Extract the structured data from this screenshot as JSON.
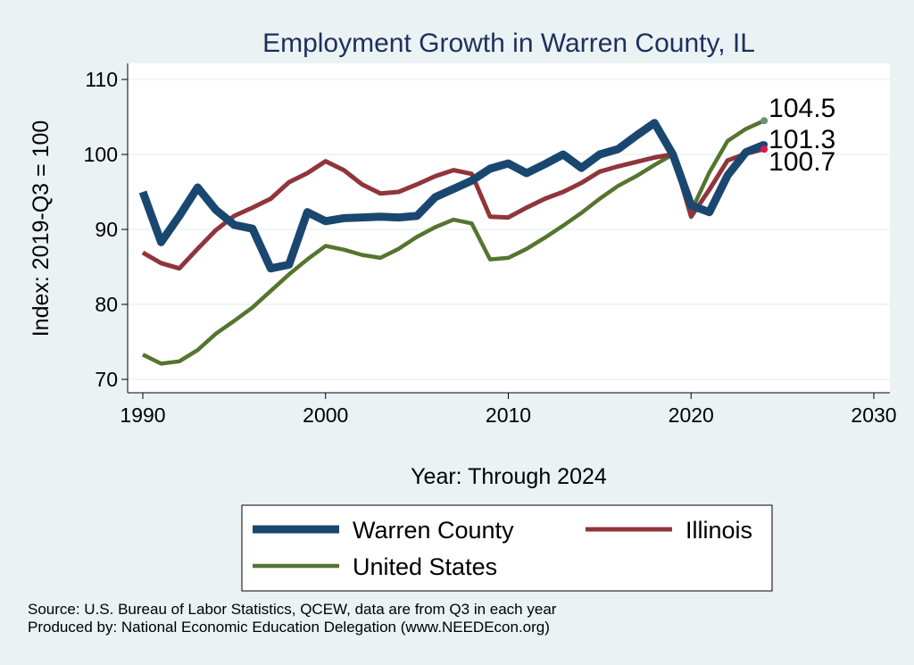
{
  "chart_data": {
    "type": "line",
    "title": "Employment Growth in Warren County, IL",
    "xlabel": "Year: Through 2024",
    "ylabel": "Index: 2019-Q3 = 100",
    "xlim": [
      1990,
      2030
    ],
    "ylim": [
      70,
      110
    ],
    "x_ticks": [
      1990,
      2000,
      2010,
      2020,
      2030
    ],
    "y_ticks": [
      70,
      80,
      90,
      100,
      110
    ],
    "grid": "horizontal",
    "legend_position": "bottom",
    "x": [
      1990,
      1991,
      1992,
      1993,
      1994,
      1995,
      1996,
      1997,
      1998,
      1999,
      2000,
      2001,
      2002,
      2003,
      2004,
      2005,
      2006,
      2007,
      2008,
      2009,
      2010,
      2011,
      2012,
      2013,
      2014,
      2015,
      2016,
      2017,
      2018,
      2019,
      2020,
      2021,
      2022,
      2023,
      2024
    ],
    "series": [
      {
        "name": "Warren  County",
        "color": "#1a476f",
        "values": [
          95.0,
          88.3,
          91.8,
          95.6,
          92.6,
          90.6,
          90.1,
          84.8,
          85.3,
          92.3,
          91.1,
          91.5,
          91.6,
          91.7,
          91.6,
          91.8,
          94.3,
          95.4,
          96.5,
          98.1,
          98.8,
          97.5,
          98.7,
          100.0,
          98.2,
          100.0,
          100.7,
          102.5,
          104.2,
          100.0,
          93.2,
          92.3,
          97.2,
          100.3,
          101.3
        ],
        "end_label": "101.3",
        "end_color": "#1a476f"
      },
      {
        "name": "Illinois",
        "color": "#90353b",
        "values": [
          86.9,
          85.5,
          84.8,
          87.4,
          89.9,
          91.8,
          92.9,
          94.1,
          96.3,
          97.5,
          99.1,
          97.9,
          96.0,
          94.8,
          95.0,
          96.0,
          97.1,
          97.9,
          97.4,
          91.7,
          91.6,
          92.9,
          94.1,
          95.0,
          96.2,
          97.7,
          98.4,
          99.0,
          99.6,
          100.0,
          91.7,
          95.3,
          99.2,
          100.1,
          100.7
        ],
        "end_label": "100.7",
        "end_color": "#e0144c"
      },
      {
        "name": "United States",
        "color": "#55752f",
        "values": [
          73.3,
          72.1,
          72.4,
          73.9,
          76.1,
          77.8,
          79.6,
          81.8,
          84.0,
          86.0,
          87.8,
          87.3,
          86.6,
          86.2,
          87.4,
          89.0,
          90.3,
          91.3,
          90.8,
          86.0,
          86.2,
          87.4,
          88.9,
          90.5,
          92.2,
          94.1,
          95.8,
          97.1,
          98.6,
          100.0,
          92.4,
          97.6,
          101.8,
          103.4,
          104.5
        ],
        "end_label": "104.5",
        "end_color": "#6d8f7a"
      }
    ]
  },
  "notes": {
    "source": "Source: U.S. Bureau of Labor Statistics, QCEW, data are from Q3 in each year",
    "produced": "Produced by: National Economic Education Delegation (www.NEEDEcon.org)"
  }
}
